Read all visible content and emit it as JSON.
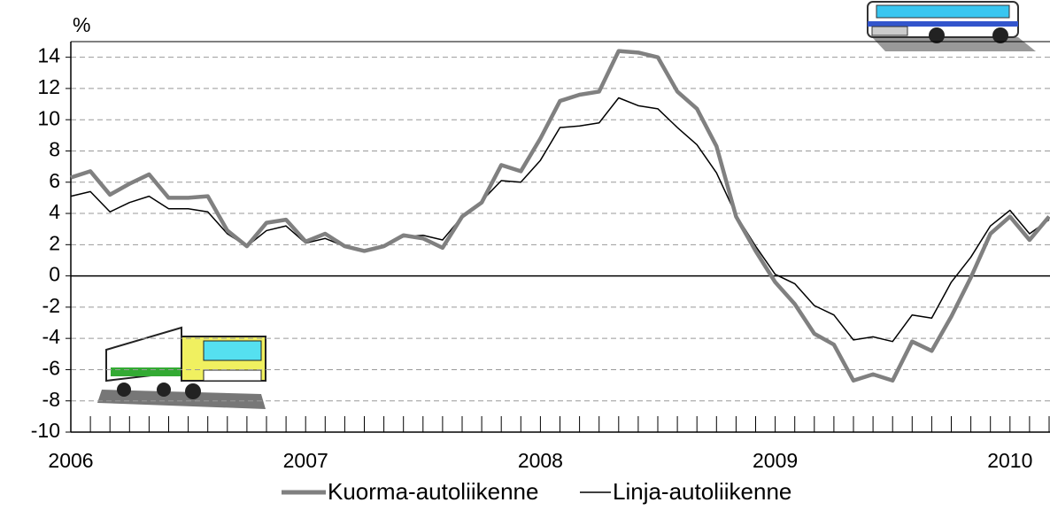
{
  "chart_data": {
    "type": "line",
    "y_label": "%",
    "categories": [
      "2006",
      null,
      null,
      null,
      null,
      null,
      null,
      null,
      null,
      null,
      null,
      null,
      "2007",
      null,
      null,
      null,
      null,
      null,
      null,
      null,
      null,
      null,
      null,
      null,
      "2008",
      null,
      null,
      null,
      null,
      null,
      null,
      null,
      null,
      null,
      null,
      null,
      "2009",
      null,
      null,
      null,
      null,
      null,
      null,
      null,
      null,
      null,
      null,
      null,
      "2010",
      null,
      null
    ],
    "series": [
      {
        "name": "Kuorma-autoliikenne",
        "color": "#808080",
        "values": [
          6.3,
          6.7,
          5.2,
          5.9,
          6.5,
          5.0,
          5.0,
          5.1,
          2.9,
          1.9,
          3.4,
          3.6,
          2.2,
          2.7,
          1.9,
          1.6,
          1.9,
          2.6,
          2.4,
          1.8,
          3.8,
          4.7,
          7.1,
          6.7,
          8.8,
          11.2,
          11.6,
          11.8,
          14.4,
          14.3,
          14.0,
          11.8,
          10.7,
          8.3,
          3.8,
          1.6,
          -0.4,
          -1.8,
          -3.7,
          -4.4,
          -6.7,
          -6.3,
          -6.7,
          -4.2,
          -4.8,
          -2.6,
          -0.1,
          2.7,
          3.8,
          2.3,
          3.8
        ]
      },
      {
        "name": "Linja-autoliikenne",
        "color": "#000000",
        "values": [
          5.1,
          5.4,
          4.1,
          4.7,
          5.1,
          4.3,
          4.3,
          4.1,
          2.7,
          1.9,
          2.9,
          3.2,
          2.1,
          2.4,
          1.9,
          1.6,
          1.9,
          2.5,
          2.6,
          2.3,
          3.8,
          4.8,
          6.1,
          6.0,
          7.4,
          9.5,
          9.6,
          9.8,
          11.4,
          10.9,
          10.7,
          9.5,
          8.4,
          6.6,
          3.9,
          1.9,
          0.1,
          -0.5,
          -1.9,
          -2.5,
          -4.1,
          -3.9,
          -4.2,
          -2.5,
          -2.7,
          -0.4,
          1.2,
          3.2,
          4.2,
          2.7,
          3.6
        ]
      }
    ],
    "ylim": [
      -10,
      15
    ],
    "yticks": [
      -10,
      -8,
      -6,
      -4,
      -2,
      0,
      2,
      4,
      6,
      8,
      10,
      12,
      14
    ],
    "grid": true
  }
}
